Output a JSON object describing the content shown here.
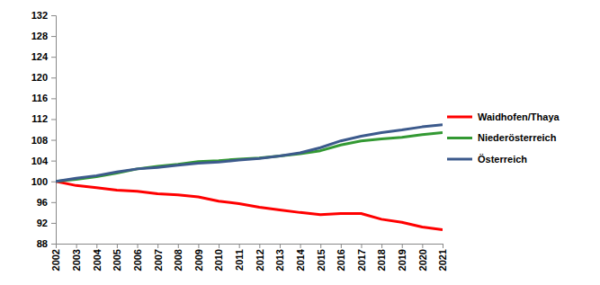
{
  "chart_data": {
    "type": "line",
    "x": [
      2002,
      2003,
      2004,
      2005,
      2006,
      2007,
      2008,
      2009,
      2010,
      2011,
      2012,
      2013,
      2014,
      2015,
      2016,
      2017,
      2018,
      2019,
      2020,
      2021
    ],
    "xlim": [
      2002,
      2021
    ],
    "xticks": [
      2002,
      2003,
      2004,
      2005,
      2006,
      2007,
      2008,
      2009,
      2010,
      2011,
      2012,
      2013,
      2014,
      2015,
      2016,
      2017,
      2018,
      2019,
      2020,
      2021
    ],
    "ylim": [
      88,
      132
    ],
    "yticks": [
      88,
      92,
      96,
      100,
      104,
      108,
      112,
      116,
      120,
      124,
      128,
      132
    ],
    "grid": false,
    "legend": "right",
    "series": [
      {
        "name": "Waidhofen/Thaya",
        "color": "#ff0000",
        "values": [
          100,
          99.2,
          98.8,
          98.3,
          98.1,
          97.6,
          97.4,
          97.0,
          96.2,
          95.7,
          95.0,
          94.5,
          94.0,
          93.6,
          93.8,
          93.8,
          92.7,
          92.1,
          91.2,
          90.7
        ]
      },
      {
        "name": "Niederösterreich",
        "color": "#339933",
        "values": [
          100,
          100.4,
          100.9,
          101.6,
          102.4,
          102.9,
          103.3,
          103.8,
          104.0,
          104.3,
          104.5,
          104.9,
          105.3,
          105.9,
          107.0,
          107.8,
          108.2,
          108.5,
          109.0,
          109.4
        ]
      },
      {
        "name": "Österreich",
        "color": "#3c5a8c",
        "values": [
          100,
          100.6,
          101.1,
          101.8,
          102.4,
          102.7,
          103.1,
          103.5,
          103.7,
          104.1,
          104.4,
          104.9,
          105.5,
          106.5,
          107.8,
          108.7,
          109.4,
          109.9,
          110.5,
          110.9
        ]
      }
    ]
  }
}
